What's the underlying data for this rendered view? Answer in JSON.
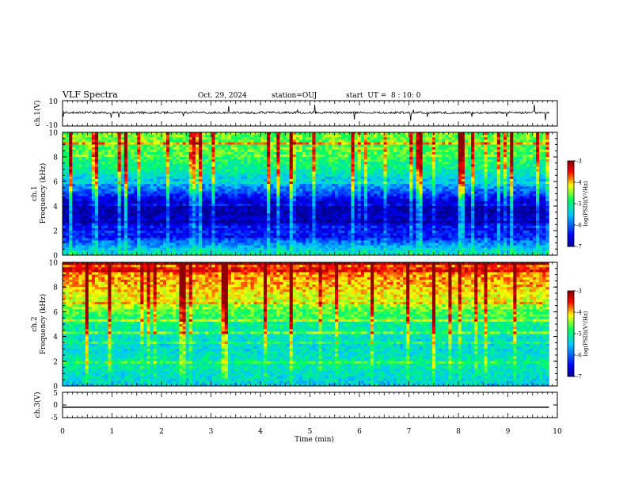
{
  "header": {
    "title": "VLF Spectra",
    "date": "Oct. 29, 2024",
    "station": "station=OUJ",
    "start": "start  UT =  8 : 10: 0"
  },
  "colors": {
    "dark_blue": "#00008f",
    "blue": "#0000ff",
    "cyan": "#00c8ff",
    "green": "#00ff60",
    "yellow": "#ffff00",
    "red": "#ff0000",
    "dark_red": "#8f0000"
  },
  "chart_data": [
    {
      "type": "line",
      "panel": "ch1-waveform",
      "ylabel": "ch.1(V)",
      "ylim": [
        -10,
        10
      ],
      "yticks": [
        "10",
        "-10"
      ],
      "x": [
        0,
        9.83
      ],
      "values": [
        0.5,
        0.5
      ],
      "note": "noisy waveform around ~0.5 V with spikes"
    },
    {
      "type": "heatmap",
      "panel": "ch1-spectrogram",
      "ylabel": "ch.1\nFrequency (kHz)",
      "ylabel_line1": "ch.1",
      "ylabel_line2": "Frequency (kHz)",
      "ylim": [
        0,
        10
      ],
      "yticks": [
        "0",
        "2",
        "4",
        "6",
        "8",
        "10"
      ],
      "xlim": [
        0,
        10
      ],
      "data_end_min": 9.83,
      "colorbar": {
        "label": "log(PSD)(V²/Hz)",
        "ticks": [
          "-3",
          "-4",
          "-5",
          "-6",
          "-7"
        ],
        "range": [
          -7,
          -3
        ]
      },
      "profile_khz": [
        [
          0,
          -5.0
        ],
        [
          1.5,
          -6.3
        ],
        [
          2.5,
          -6.6
        ],
        [
          3.5,
          -6.9
        ],
        [
          4.0,
          -6.9
        ],
        [
          4.6,
          -6.5
        ],
        [
          5.2,
          -6.0
        ],
        [
          6.0,
          -5.5
        ],
        [
          7.0,
          -5.0
        ],
        [
          8.5,
          -4.6
        ],
        [
          10,
          -4.5
        ]
      ]
    },
    {
      "type": "heatmap",
      "panel": "ch2-spectrogram",
      "ylabel": "ch.2\nFrequency (kHz)",
      "ylabel_line1": "ch.2",
      "ylabel_line2": "Frequency (kHz)",
      "ylim": [
        0,
        10
      ],
      "yticks": [
        "0",
        "2",
        "4",
        "6",
        "8",
        "10"
      ],
      "xlim": [
        0,
        10
      ],
      "data_end_min": 9.83,
      "colorbar": {
        "label": "log(PSD)(V²/Hz)",
        "ticks": [
          "-3",
          "-4",
          "-5",
          "-6",
          "-7"
        ],
        "range": [
          -7,
          -3
        ]
      },
      "profile_khz": [
        [
          0,
          -5.4
        ],
        [
          1,
          -5.2
        ],
        [
          2,
          -5.1
        ],
        [
          3,
          -5.3
        ],
        [
          4,
          -5.2
        ],
        [
          5,
          -5.0
        ],
        [
          6,
          -4.6
        ],
        [
          7,
          -4.2
        ],
        [
          8,
          -4.0
        ],
        [
          9,
          -3.8
        ],
        [
          10,
          -3.7
        ]
      ]
    },
    {
      "type": "line",
      "panel": "ch3-waveform",
      "ylabel": "ch.3(V)",
      "ylim": [
        -5,
        5
      ],
      "yticks": [
        "5",
        "0",
        "-5"
      ],
      "x": [
        0,
        9.83
      ],
      "values": [
        -0.9,
        -0.9
      ]
    }
  ],
  "xaxis": {
    "label": "Time (min)",
    "range": [
      0,
      10
    ],
    "ticks": [
      "0",
      "1",
      "2",
      "3",
      "4",
      "5",
      "6",
      "7",
      "8",
      "9",
      "10"
    ]
  }
}
